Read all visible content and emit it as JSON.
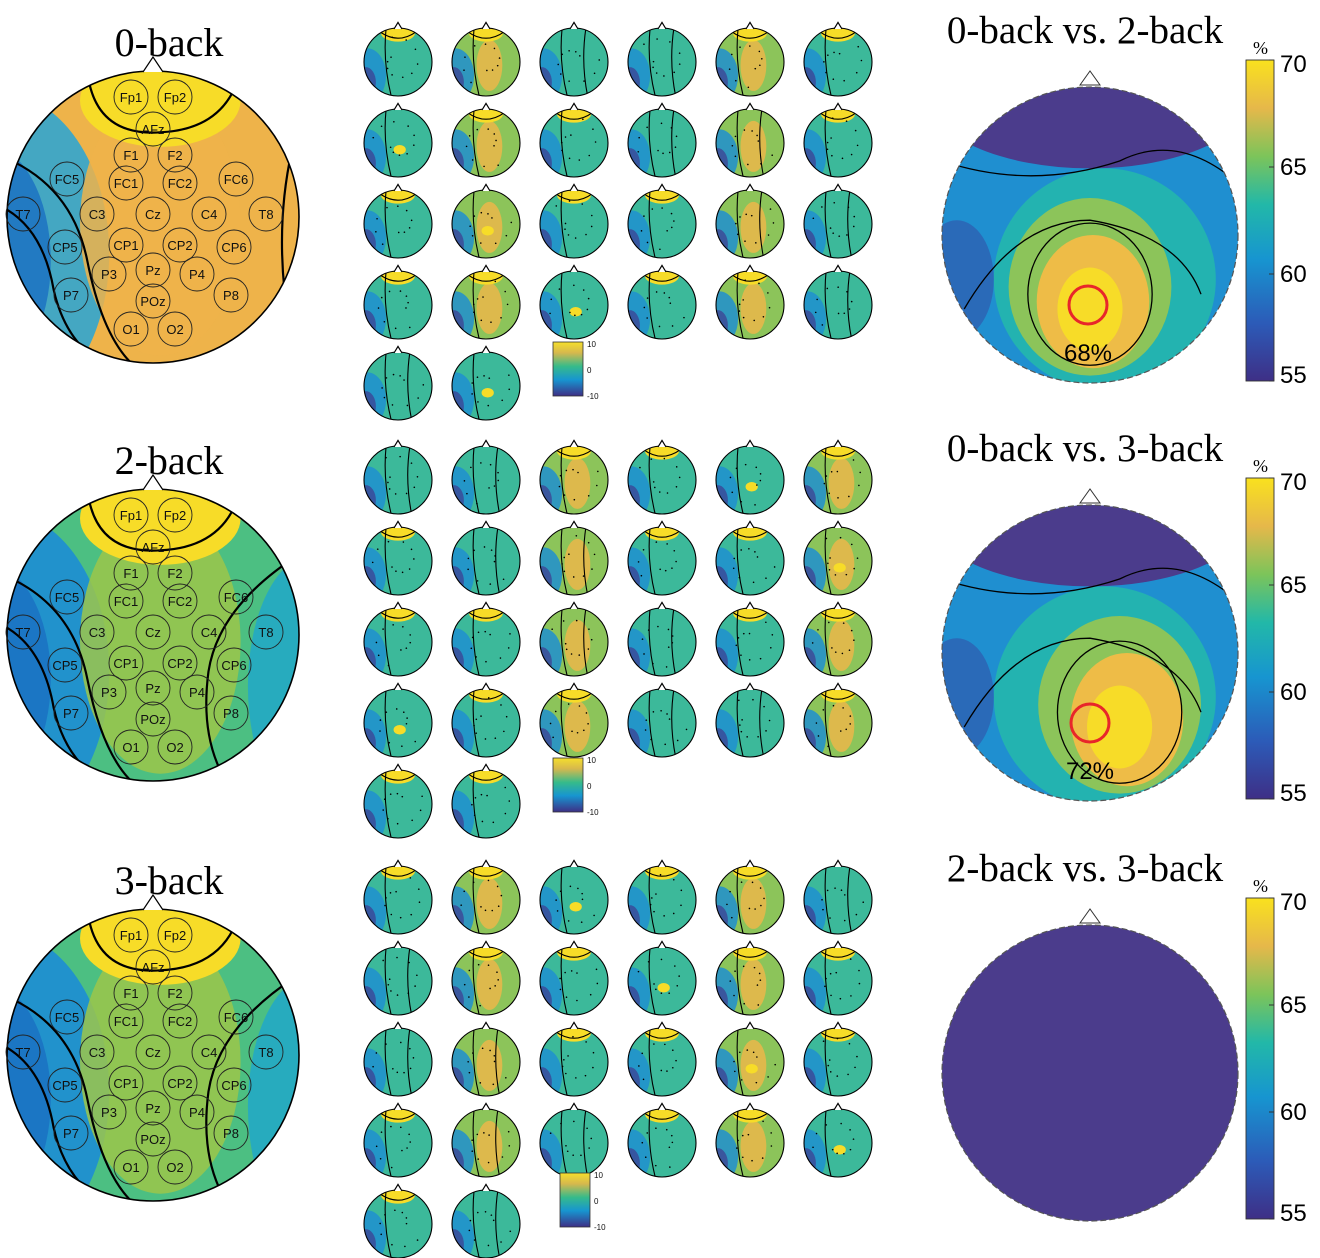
{
  "palette": {
    "purple": "#4b3c8c",
    "blue": "#1f77c8",
    "cyan": "#26b3c4",
    "green": "#4cbf82",
    "yellow_green": "#b6c93e",
    "orange": "#eeb34a",
    "yellow": "#f7dc28",
    "outline": "#000000",
    "marker": "#e8262a"
  },
  "rows": [
    {
      "condition_label": "0-back",
      "electrodes": [
        "Fp1",
        "Fp2",
        "AFz",
        "F1",
        "F2",
        "FC5",
        "FC1",
        "FC2",
        "FC6",
        "T7",
        "C3",
        "Cz",
        "C4",
        "T8",
        "CP5",
        "CP1",
        "CP2",
        "CP6",
        "P7",
        "P3",
        "Pz",
        "P4",
        "P8",
        "POz",
        "O1",
        "O2"
      ],
      "pattern_scalp": "a",
      "pattern_small": [
        "b",
        "c",
        "d",
        "e",
        "f",
        "g",
        "h",
        "i",
        "j",
        "k",
        "l",
        "m",
        "n",
        "o",
        "p",
        "q",
        "r",
        "s",
        "t",
        "u",
        "v",
        "w",
        "x",
        "y",
        "z",
        "aa"
      ],
      "small_colorbar": {
        "ticks": [
          "10",
          "0",
          "-10"
        ]
      },
      "comparison": {
        "title": "0-back vs. 2-back",
        "pattern": "cmp1",
        "value_label": "68%",
        "marker_visible": true
      },
      "colorbar": {
        "unit": "%",
        "ticks": [
          "70",
          "65",
          "60",
          "55"
        ],
        "min": 55,
        "max": 70
      }
    },
    {
      "condition_label": "2-back",
      "electrodes": [
        "Fp1",
        "Fp2",
        "AFz",
        "F1",
        "F2",
        "FC5",
        "FC1",
        "FC2",
        "FC6",
        "T7",
        "C3",
        "Cz",
        "C4",
        "T8",
        "CP5",
        "CP1",
        "CP2",
        "CP6",
        "P7",
        "P3",
        "Pz",
        "P4",
        "P8",
        "POz",
        "O1",
        "O2"
      ],
      "pattern_scalp": "ab",
      "pattern_small": [
        "b2",
        "c2",
        "d2",
        "e2",
        "f2",
        "g2",
        "h2",
        "i2",
        "j2",
        "k2",
        "l2",
        "m2",
        "n2",
        "o2",
        "p2",
        "q2",
        "r2",
        "s2",
        "t2",
        "u2",
        "v2",
        "w2",
        "x2",
        "y2",
        "z2",
        "aa2"
      ],
      "small_colorbar": {
        "ticks": [
          "10",
          "0",
          "-10"
        ]
      },
      "comparison": {
        "title": "0-back vs. 3-back",
        "pattern": "cmp2",
        "value_label": "72%",
        "marker_visible": true
      },
      "colorbar": {
        "unit": "%",
        "ticks": [
          "70",
          "65",
          "60",
          "55"
        ],
        "min": 55,
        "max": 70
      }
    },
    {
      "condition_label": "3-back",
      "electrodes": [
        "Fp1",
        "Fp2",
        "AFz",
        "F1",
        "F2",
        "FC5",
        "FC1",
        "FC2",
        "FC6",
        "T7",
        "C3",
        "Cz",
        "C4",
        "T8",
        "CP5",
        "CP1",
        "CP2",
        "CP6",
        "P7",
        "P3",
        "Pz",
        "P4",
        "P8",
        "POz",
        "O1",
        "O2"
      ],
      "pattern_scalp": "ac",
      "pattern_small": [
        "b3",
        "c3",
        "d3",
        "e3",
        "f3",
        "g3",
        "h3",
        "i3",
        "j3",
        "k3",
        "l3",
        "m3",
        "n3",
        "o3",
        "p3",
        "q3",
        "r3",
        "s3",
        "t3",
        "u3",
        "v3",
        "w3",
        "x3",
        "y3",
        "z3",
        "aa3"
      ],
      "small_colorbar": {
        "ticks": [
          "10",
          "0",
          "-10"
        ]
      },
      "comparison": {
        "title": "2-back vs. 3-back",
        "pattern": "flat",
        "value_label": "",
        "marker_visible": false
      },
      "colorbar": {
        "unit": "%",
        "ticks": [
          "70",
          "65",
          "60",
          "55"
        ],
        "min": 55,
        "max": 70
      }
    }
  ]
}
